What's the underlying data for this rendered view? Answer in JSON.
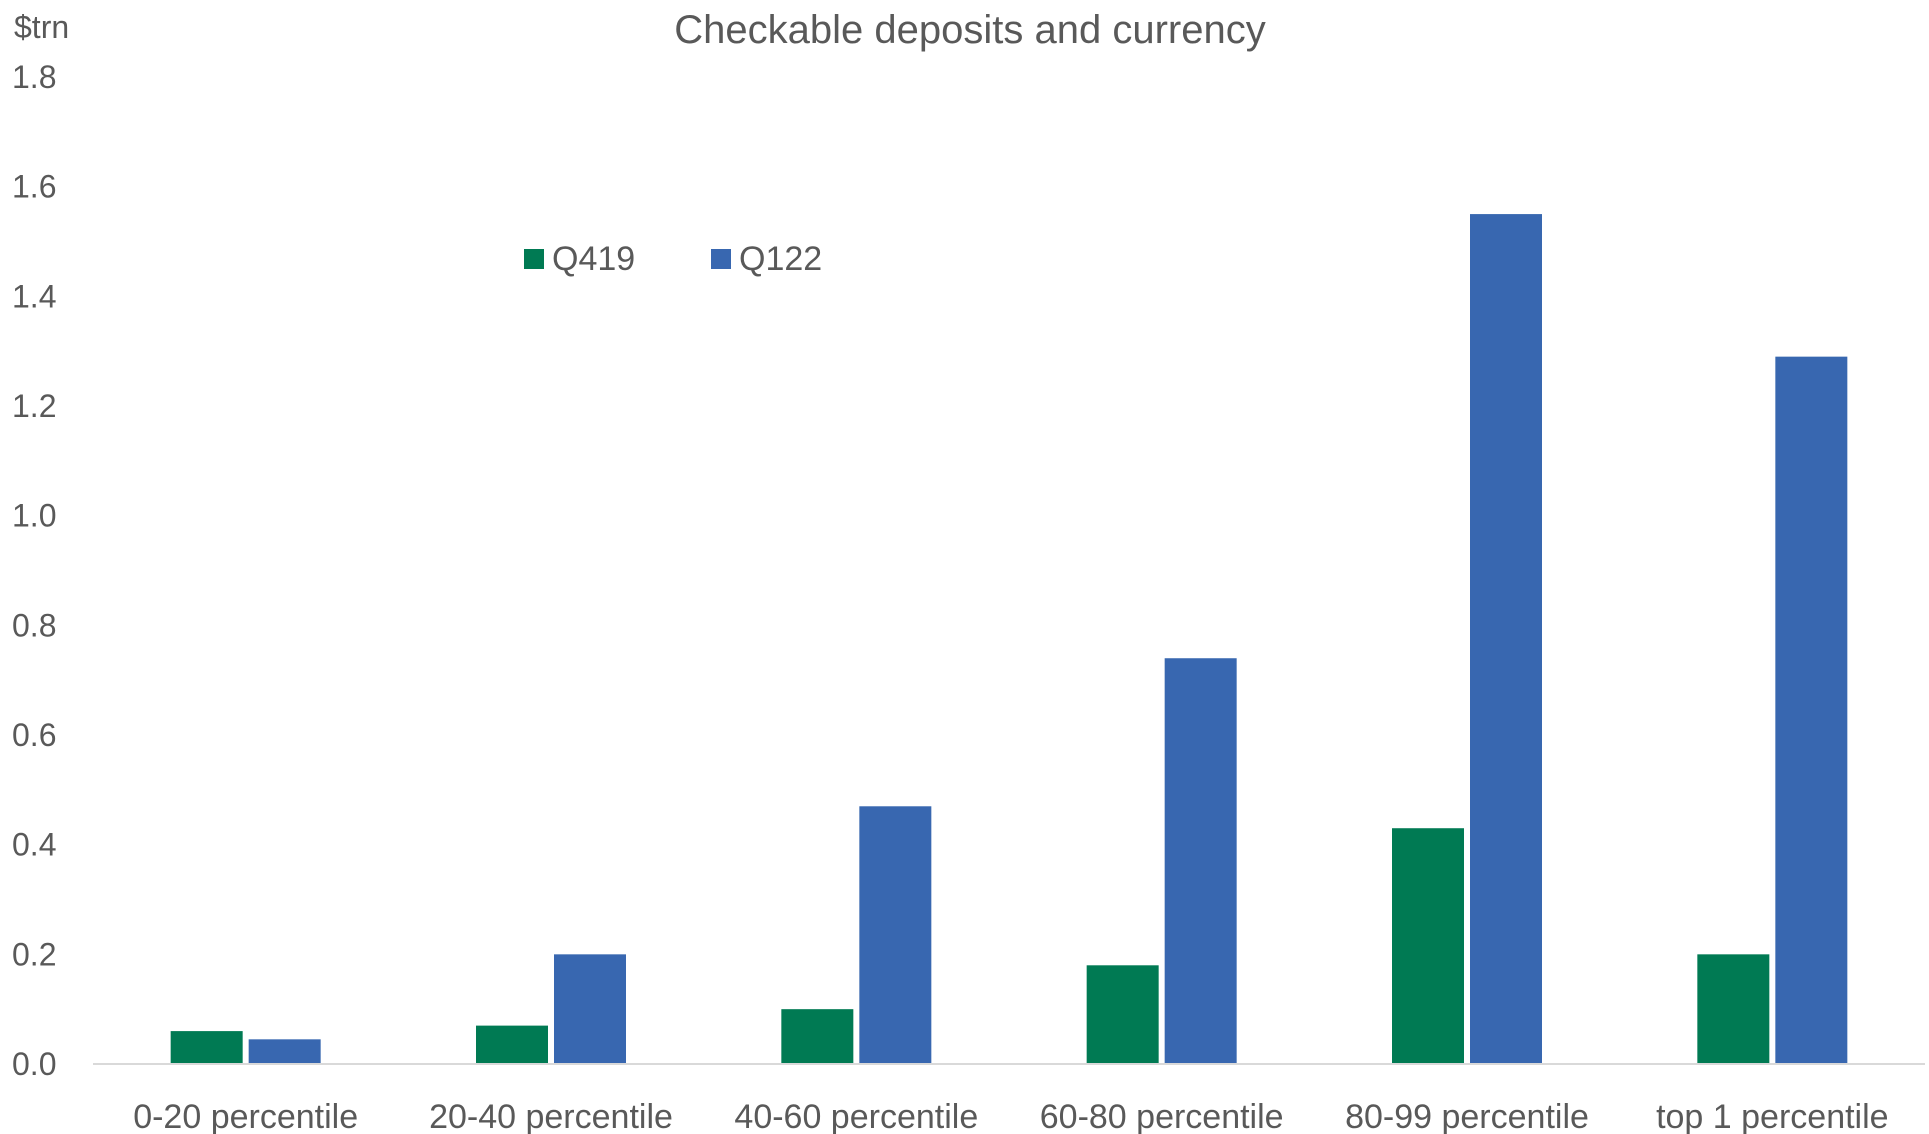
{
  "chart_data": {
    "type": "bar",
    "title": "Checkable deposits and currency",
    "ylabel": "$trn",
    "xlabel": "",
    "ylim": [
      0,
      1.8
    ],
    "yticks": [
      "0.0",
      "0.2",
      "0.4",
      "0.6",
      "0.8",
      "1.0",
      "1.2",
      "1.4",
      "1.6",
      "1.8"
    ],
    "grid": false,
    "legend_position": "top-left",
    "categories": [
      "0-20 percentile",
      "20-40 percentile",
      "40-60 percentile",
      "60-80 percentile",
      "80-99 percentile",
      "top 1 percentile"
    ],
    "series": [
      {
        "name": "Q419",
        "color": "#007A53",
        "values": [
          0.06,
          0.07,
          0.1,
          0.18,
          0.43,
          0.2
        ]
      },
      {
        "name": "Q122",
        "color": "#3867B0",
        "values": [
          0.045,
          0.2,
          0.47,
          0.74,
          1.55,
          1.29
        ]
      }
    ]
  }
}
